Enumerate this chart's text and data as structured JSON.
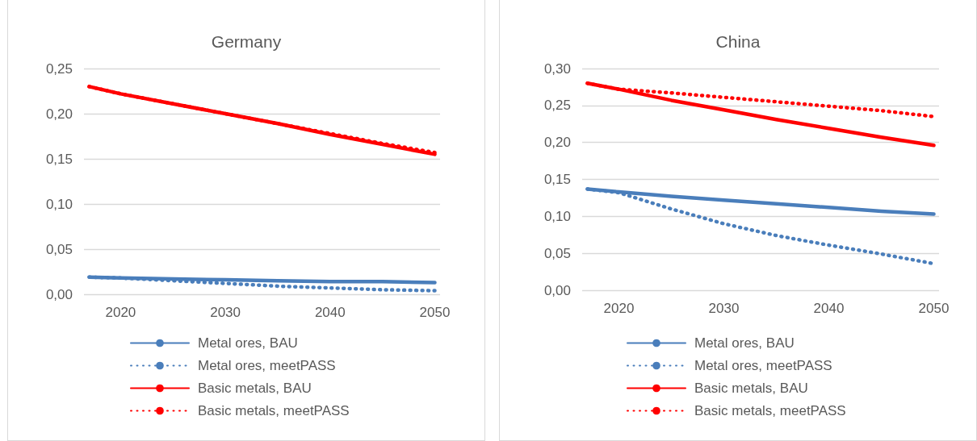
{
  "chart_data": [
    {
      "type": "line",
      "title": "Germany",
      "x": [
        2017,
        2020,
        2025,
        2030,
        2035,
        2040,
        2045,
        2050
      ],
      "xlim": [
        2016.5,
        2050.5
      ],
      "xticks": [
        2020,
        2030,
        2040,
        2050
      ],
      "ylim": [
        0,
        0.25
      ],
      "yticks": [
        {
          "value": 0,
          "label": "0,00"
        },
        {
          "value": 0.05,
          "label": "0,05"
        },
        {
          "value": 0.1,
          "label": "0,10"
        },
        {
          "value": 0.15,
          "label": "0,15"
        },
        {
          "value": 0.2,
          "label": "0,20"
        },
        {
          "value": 0.25,
          "label": "0,25"
        }
      ],
      "grid": "y",
      "legend": "bottom",
      "marker": "none",
      "series": [
        {
          "name": "Metal ores, BAU",
          "color": "#4a7ebb",
          "line_style": "solid",
          "values": [
            0.019,
            0.018,
            0.017,
            0.016,
            0.015,
            0.014,
            0.014,
            0.013
          ]
        },
        {
          "name": "Metal ores, meetPASS",
          "color": "#4a7ebb",
          "line_style": "dotted",
          "values": [
            0.019,
            0.018,
            0.015,
            0.012,
            0.009,
            0.007,
            0.005,
            0.004
          ]
        },
        {
          "name": "Basic metals, BAU",
          "color": "#ff0000",
          "line_style": "solid",
          "values": [
            0.23,
            0.222,
            0.211,
            0.2,
            0.189,
            0.177,
            0.166,
            0.155
          ]
        },
        {
          "name": "Basic metals, meetPASS",
          "color": "#ff0000",
          "line_style": "dotted",
          "values": [
            0.23,
            0.222,
            0.211,
            0.2,
            0.189,
            0.178,
            0.167,
            0.157
          ]
        }
      ]
    },
    {
      "type": "line",
      "title": "China",
      "x": [
        2017,
        2020,
        2025,
        2030,
        2035,
        2040,
        2045,
        2050
      ],
      "xlim": [
        2016.5,
        2050.5
      ],
      "xticks": [
        2020,
        2030,
        2040,
        2050
      ],
      "ylim": [
        0,
        0.3
      ],
      "yticks": [
        {
          "value": 0,
          "label": "0,00"
        },
        {
          "value": 0.05,
          "label": "0,05"
        },
        {
          "value": 0.1,
          "label": "0,10"
        },
        {
          "value": 0.15,
          "label": "0,15"
        },
        {
          "value": 0.2,
          "label": "0,20"
        },
        {
          "value": 0.25,
          "label": "0,25"
        },
        {
          "value": 0.3,
          "label": "0,30"
        }
      ],
      "grid": "y",
      "legend": "bottom",
      "marker": "none",
      "series": [
        {
          "name": "Metal ores, BAU",
          "color": "#4a7ebb",
          "line_style": "solid",
          "values": [
            0.137,
            0.133,
            0.127,
            0.122,
            0.117,
            0.112,
            0.107,
            0.103
          ]
        },
        {
          "name": "Metal ores, meetPASS",
          "color": "#4a7ebb",
          "line_style": "dotted",
          "values": [
            0.137,
            0.132,
            0.11,
            0.09,
            0.074,
            0.061,
            0.049,
            0.036
          ]
        },
        {
          "name": "Basic metals, BAU",
          "color": "#ff0000",
          "line_style": "solid",
          "values": [
            0.28,
            0.272,
            0.257,
            0.244,
            0.231,
            0.219,
            0.207,
            0.196
          ]
        },
        {
          "name": "Basic metals, meetPASS",
          "color": "#ff0000",
          "line_style": "dotted",
          "values": [
            0.28,
            0.272,
            0.267,
            0.261,
            0.255,
            0.249,
            0.243,
            0.235
          ]
        }
      ]
    }
  ]
}
